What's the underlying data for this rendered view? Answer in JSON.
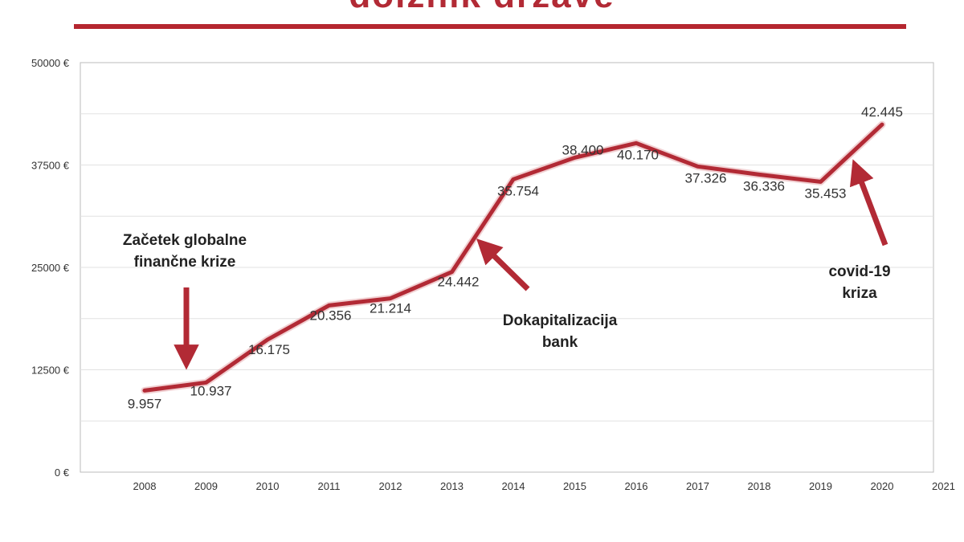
{
  "chart_data": {
    "type": "line",
    "title": "",
    "xlabel": "",
    "ylabel": "",
    "x": [
      "2008",
      "2009",
      "2010",
      "2011",
      "2012",
      "2013",
      "2014",
      "2015",
      "2016",
      "2017",
      "2018",
      "2019",
      "2020"
    ],
    "x_ticks": [
      "2008",
      "2009",
      "2010",
      "2011",
      "2012",
      "2013",
      "2014",
      "2015",
      "2016",
      "2017",
      "2018",
      "2019",
      "2020",
      "2021"
    ],
    "series": [
      {
        "name": "",
        "values": [
          9957,
          10937,
          16175,
          20356,
          21214,
          24442,
          35754,
          38400,
          40170,
          37326,
          36336,
          35453,
          42445
        ],
        "labels": [
          "9.957",
          "10.937",
          "16.175",
          "20.356",
          "21.214",
          "24.442",
          "35.754",
          "38.400",
          "40.170",
          "37.326",
          "36.336",
          "35.453",
          "42.445"
        ]
      }
    ],
    "ylim": [
      0,
      50000
    ],
    "y_ticks": [
      0,
      12500,
      25000,
      37500,
      50000
    ],
    "y_tick_labels": [
      "0 €",
      "12500 €",
      "25000 €",
      "37500 €",
      "50000 €"
    ],
    "grid": true,
    "legend": "none",
    "line_color": "#b22a35",
    "annotations": [
      {
        "lines": [
          "Začetek globalne",
          "finančne krize"
        ],
        "year": "2009"
      },
      {
        "lines": [
          "Dokapitalizacija",
          "bank"
        ],
        "year": "2013"
      },
      {
        "lines": [
          "covid-19",
          "kriza"
        ],
        "year": "2020"
      }
    ]
  },
  "title_fragment": "dolžnik države"
}
